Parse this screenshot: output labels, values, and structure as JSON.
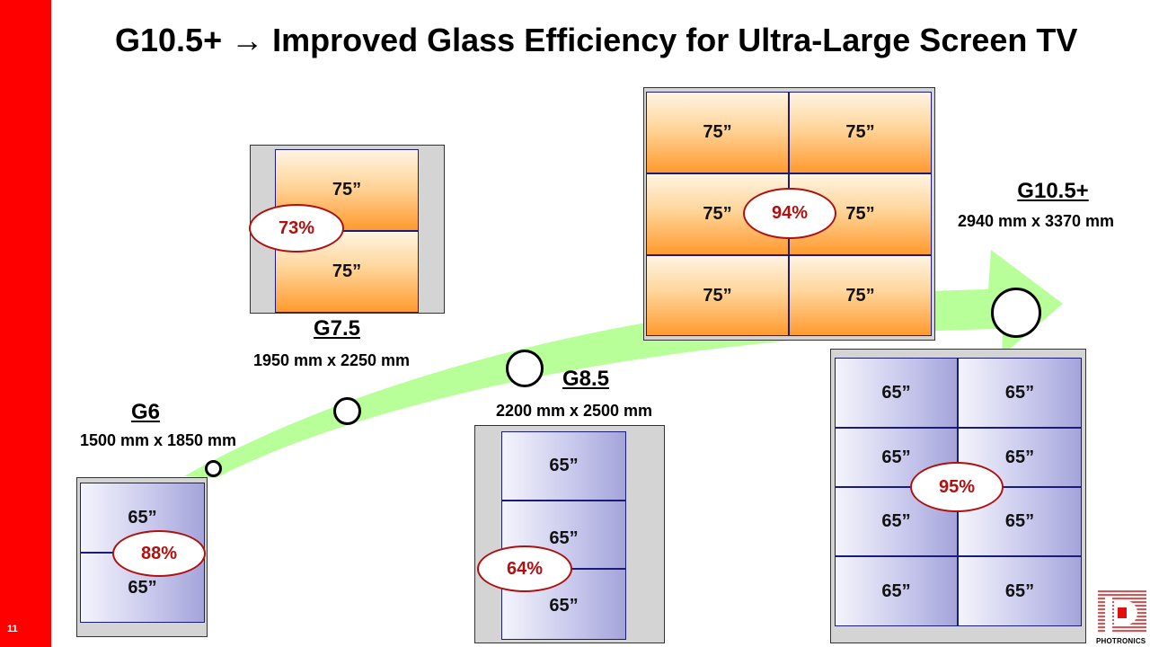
{
  "page_number": "11",
  "title": "G10.5+ → Improved Glass Efficiency for Ultra-Large Screen TV",
  "generations": {
    "g6": {
      "label": "G6",
      "dims": "1500 mm x 1850 mm",
      "panels": [
        "65”",
        "65”"
      ],
      "efficiency": "88%"
    },
    "g75": {
      "label": "G7.5",
      "dims": "1950 mm x 2250 mm",
      "panels": [
        "75”",
        "75”"
      ],
      "efficiency": "73%"
    },
    "g85": {
      "label": "G8.5",
      "dims": "2200 mm x 2500 mm",
      "panels": [
        "65”",
        "65”",
        "65”"
      ],
      "efficiency": "64%"
    },
    "g105": {
      "label": "G10.5+",
      "dims": "2940 mm x 3370 mm",
      "panels_75": [
        "75”",
        "75”",
        "75”",
        "75”",
        "75”",
        "75”"
      ],
      "efficiency_75": "94%",
      "panels_65": [
        "65”",
        "65”",
        "65”",
        "65”",
        "65”",
        "65”",
        "65”",
        "65”"
      ],
      "efficiency_65": "95%"
    }
  },
  "colors": {
    "accent_red": "#ff0000",
    "efficiency_red": "#b01010",
    "arrow_green": "#b8ff9a"
  },
  "logo": {
    "text": "PHOTRONICS"
  }
}
